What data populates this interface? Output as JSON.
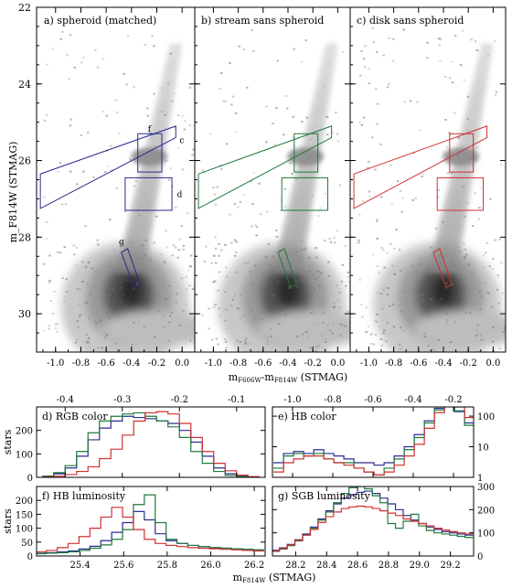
{
  "chart_data": [
    {
      "type": "heatmap",
      "panel": "a",
      "title": "a) spheroid (matched)",
      "xlabel": "",
      "ylabel": "m_F814W (STMAG)",
      "xlim": [
        -1.15,
        0.1
      ],
      "ylim": [
        31.0,
        22.0
      ],
      "xticks": [
        "-1.0",
        "-0.8",
        "-0.6",
        "-0.4",
        "-0.2",
        "0.0"
      ],
      "yticks": [
        "22",
        "24",
        "26",
        "28",
        "30"
      ],
      "box_color": "#2b2b90",
      "box_labels": [
        "c",
        "d",
        "f",
        "g"
      ]
    },
    {
      "type": "heatmap",
      "panel": "b",
      "title": "b) stream sans spheroid",
      "xlim": [
        -1.15,
        0.1
      ],
      "ylim": [
        31.0,
        22.0
      ],
      "xticks": [
        "-1.0",
        "-0.8",
        "-0.6",
        "-0.4",
        "-0.2",
        "0.0"
      ],
      "box_color": "#1f7a3a"
    },
    {
      "type": "heatmap",
      "panel": "c",
      "title": "c) disk sans spheroid",
      "xlim": [
        -1.15,
        0.1
      ],
      "ylim": [
        31.0,
        22.0
      ],
      "xticks": [
        "-1.0",
        "-0.8",
        "-0.6",
        "-0.4",
        "-0.2",
        "0.0"
      ],
      "box_color": "#d03030"
    },
    {
      "type": "line",
      "panel": "d",
      "title": "d) RGB color",
      "ylabel": "stars",
      "top_xlim": [
        -0.45,
        -0.05
      ],
      "top_xticks": [
        "-0.4",
        "-0.3",
        "-0.2",
        "-0.1"
      ],
      "ylim": [
        0,
        300
      ],
      "yticks": [
        "0",
        "100",
        "200"
      ],
      "x": [
        -0.43,
        -0.41,
        -0.39,
        -0.37,
        -0.35,
        -0.33,
        -0.31,
        -0.29,
        -0.27,
        -0.25,
        -0.23,
        -0.21,
        -0.19,
        -0.17,
        -0.15,
        -0.13,
        -0.11,
        -0.09,
        -0.07
      ],
      "series": [
        {
          "color": "#2b2b90",
          "values": [
            5,
            15,
            40,
            90,
            160,
            210,
            240,
            260,
            255,
            250,
            240,
            230,
            200,
            150,
            90,
            40,
            15,
            5,
            2
          ]
        },
        {
          "color": "#1f7a3a",
          "values": [
            5,
            20,
            50,
            110,
            190,
            240,
            260,
            270,
            275,
            260,
            240,
            215,
            170,
            110,
            60,
            25,
            8,
            3,
            1
          ]
        },
        {
          "color": "#d03030",
          "values": [
            2,
            5,
            12,
            25,
            45,
            80,
            120,
            180,
            240,
            275,
            280,
            270,
            230,
            170,
            110,
            60,
            28,
            10,
            3
          ]
        }
      ]
    },
    {
      "type": "line",
      "panel": "e",
      "title": "e) HB color",
      "top_xlim": [
        -1.1,
        -0.1
      ],
      "top_xticks": [
        "-1.0",
        "-0.8",
        "-0.6",
        "-0.4",
        "-0.2"
      ],
      "y_scale": "log",
      "ylim": [
        1,
        200
      ],
      "yticks": [
        "1",
        "10",
        "100"
      ],
      "x": [
        -1.07,
        -1.02,
        -0.97,
        -0.92,
        -0.87,
        -0.82,
        -0.77,
        -0.72,
        -0.67,
        -0.62,
        -0.57,
        -0.52,
        -0.47,
        -0.42,
        -0.37,
        -0.32,
        -0.27,
        -0.22,
        -0.17,
        -0.12
      ],
      "series": [
        {
          "color": "#2b2b90",
          "values": [
            3,
            6,
            7,
            6,
            8,
            6,
            5,
            4,
            3,
            3,
            2.5,
            3,
            5,
            10,
            25,
            70,
            180,
            230,
            140,
            60
          ]
        },
        {
          "color": "#1f7a3a",
          "values": [
            2,
            5,
            6,
            5,
            6,
            4,
            3,
            3,
            2,
            1.5,
            1.2,
            2,
            4,
            8,
            20,
            60,
            160,
            240,
            150,
            50
          ]
        },
        {
          "color": "#d03030",
          "values": [
            1.5,
            3,
            4,
            5,
            5,
            4,
            3,
            2.5,
            2,
            1.5,
            1.2,
            1.5,
            2.5,
            5,
            12,
            40,
            130,
            250,
            200,
            90
          ]
        }
      ]
    },
    {
      "type": "line",
      "panel": "f",
      "title": "f) HB luminosity",
      "ylabel": "stars",
      "xlabel": "m_F814W (STMAG)",
      "xlim": [
        25.2,
        26.25
      ],
      "xticks": [
        "25.4",
        "25.6",
        "25.8",
        "26.0",
        "26.2"
      ],
      "ylim": [
        0,
        250
      ],
      "yticks": [
        "0",
        "50",
        "100",
        "150",
        "200"
      ],
      "x": [
        25.22,
        25.27,
        25.32,
        25.37,
        25.42,
        25.47,
        25.52,
        25.57,
        25.62,
        25.67,
        25.72,
        25.77,
        25.82,
        25.87,
        25.92,
        25.97,
        26.02,
        26.07,
        26.12,
        26.17,
        26.22
      ],
      "series": [
        {
          "color": "#2b2b90",
          "values": [
            10,
            12,
            15,
            18,
            25,
            35,
            55,
            85,
            120,
            160,
            130,
            80,
            55,
            45,
            38,
            34,
            30,
            28,
            26,
            24,
            22
          ]
        },
        {
          "color": "#1f7a3a",
          "values": [
            8,
            10,
            12,
            15,
            20,
            28,
            40,
            60,
            95,
            185,
            220,
            120,
            60,
            45,
            38,
            34,
            30,
            28,
            26,
            24,
            22
          ]
        },
        {
          "color": "#d03030",
          "values": [
            15,
            20,
            30,
            45,
            70,
            100,
            140,
            175,
            140,
            95,
            60,
            45,
            38,
            34,
            30,
            28,
            26,
            24,
            22,
            20,
            18
          ]
        }
      ]
    },
    {
      "type": "line",
      "panel": "g",
      "title": "g) SGB luminosity",
      "xlim": [
        28.05,
        29.35
      ],
      "xticks": [
        "28.2",
        "28.4",
        "28.6",
        "28.8",
        "29.0",
        "29.2"
      ],
      "ylim": [
        0,
        300
      ],
      "yticks": [
        "0",
        "100",
        "200",
        "300"
      ],
      "x": [
        28.07,
        28.12,
        28.17,
        28.22,
        28.27,
        28.32,
        28.37,
        28.42,
        28.47,
        28.52,
        28.57,
        28.62,
        28.67,
        28.72,
        28.77,
        28.82,
        28.87,
        28.92,
        28.97,
        29.02,
        29.07,
        29.12,
        29.17,
        29.22,
        29.27,
        29.32
      ],
      "series": [
        {
          "color": "#2b2b90",
          "values": [
            25,
            35,
            50,
            70,
            95,
            125,
            160,
            195,
            225,
            250,
            265,
            275,
            280,
            270,
            250,
            225,
            200,
            175,
            155,
            140,
            125,
            115,
            105,
            100,
            95,
            90
          ]
        },
        {
          "color": "#1f7a3a",
          "values": [
            20,
            30,
            45,
            65,
            90,
            120,
            155,
            190,
            230,
            270,
            295,
            300,
            290,
            260,
            230,
            140,
            120,
            150,
            180,
            130,
            110,
            100,
            95,
            90,
            85,
            80
          ]
        },
        {
          "color": "#d03030",
          "values": [
            22,
            32,
            48,
            68,
            90,
            115,
            145,
            170,
            190,
            205,
            212,
            215,
            212,
            205,
            195,
            185,
            175,
            160,
            150,
            140,
            130,
            120,
            112,
            105,
            100,
            95
          ]
        }
      ]
    }
  ]
}
